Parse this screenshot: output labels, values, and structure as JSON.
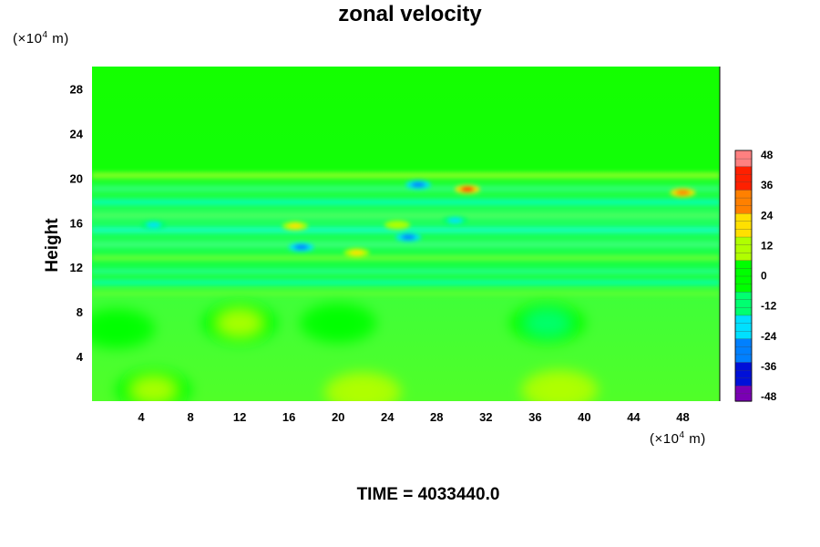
{
  "chart_data": {
    "type": "heatmap",
    "title": "zonal velocity",
    "ylabel": "Height",
    "x_unit": "m",
    "y_unit": "m",
    "unit_scale_exponent": "4",
    "x_ticks": [
      4,
      8,
      12,
      16,
      20,
      24,
      28,
      32,
      36,
      40,
      44,
      48
    ],
    "y_ticks": [
      4,
      8,
      12,
      16,
      20,
      24,
      28
    ],
    "xlim": [
      0,
      51
    ],
    "ylim": [
      0,
      30
    ],
    "colorbar": {
      "ticks": [
        48,
        36,
        24,
        12,
        0,
        -12,
        -24,
        -36,
        -48
      ],
      "range": [
        -48,
        48
      ],
      "colors_low_to_high": [
        "#7a00b4",
        "#0010d8",
        "#0080ff",
        "#00e0ff",
        "#00ff70",
        "#00ff00",
        "#b0ff00",
        "#ffe000",
        "#ff8000",
        "#ff2000",
        "#ff8080"
      ]
    },
    "features": [
      {
        "x": 30.5,
        "y": 19.0,
        "value": 36
      },
      {
        "x": 48.0,
        "y": 18.7,
        "value": 30
      },
      {
        "x": 16.5,
        "y": 15.7,
        "value": 18
      },
      {
        "x": 17.0,
        "y": 13.8,
        "value": -30
      },
      {
        "x": 5.0,
        "y": 15.8,
        "value": -22
      },
      {
        "x": 25.7,
        "y": 14.7,
        "value": -28
      },
      {
        "x": 26.5,
        "y": 19.4,
        "value": -26
      },
      {
        "x": 29.5,
        "y": 16.2,
        "value": -20
      },
      {
        "x": 21.5,
        "y": 13.3,
        "value": 16
      },
      {
        "x": 24.8,
        "y": 15.8,
        "value": 14
      },
      {
        "x": 12.0,
        "y": 7.0,
        "value": 8
      },
      {
        "x": 38.0,
        "y": 1.0,
        "value": 10
      },
      {
        "x": 22.0,
        "y": 0.8,
        "value": 10
      },
      {
        "x": 5.0,
        "y": 1.0,
        "value": 8
      },
      {
        "x": 20.0,
        "y": 7.0,
        "value": -4
      },
      {
        "x": 37.0,
        "y": 7.0,
        "value": -5
      },
      {
        "x": 2.0,
        "y": 6.5,
        "value": -4
      }
    ]
  },
  "footer": {
    "time_label": "TIME = 4033440.0"
  }
}
